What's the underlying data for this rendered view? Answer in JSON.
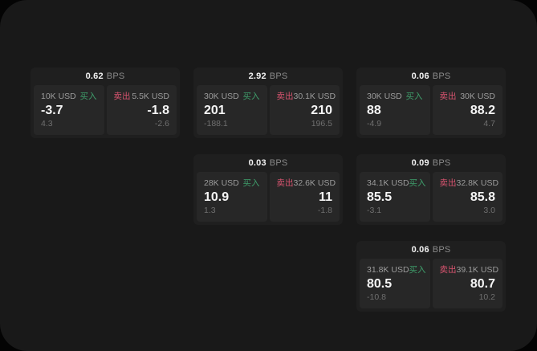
{
  "theme": {
    "frame_color": "#040404",
    "window_bg": "#191919",
    "card_bg": "#1f1f1f",
    "panel_bg": "#272727",
    "buy_color": "#3f9e6b",
    "sell_color": "#d8546f",
    "value_color": "#f5f5f5",
    "label_color": "#9c9c9c",
    "dim_color": "#6f6f6f"
  },
  "labels": {
    "bps": "BPS",
    "buy": "买入",
    "sell": "卖出"
  },
  "cards": [
    {
      "bps": "0.62",
      "buy": {
        "amount": "10K USD",
        "value": "-3.7",
        "delta": "4.3"
      },
      "sell": {
        "amount": "5.5K USD",
        "value": "-1.8",
        "delta": "-2.6"
      }
    },
    {
      "bps": "2.92",
      "buy": {
        "amount": "30K USD",
        "value": "201",
        "delta": "-188.1"
      },
      "sell": {
        "amount": "30.1K USD",
        "value": "210",
        "delta": "196.5"
      }
    },
    {
      "bps": "0.06",
      "buy": {
        "amount": "30K USD",
        "value": "88",
        "delta": "-4.9"
      },
      "sell": {
        "amount": "30K USD",
        "value": "88.2",
        "delta": "4.7"
      }
    },
    {
      "bps": "0.03",
      "buy": {
        "amount": "28K USD",
        "value": "10.9",
        "delta": "1.3"
      },
      "sell": {
        "amount": "32.6K USD",
        "value": "11",
        "delta": "-1.8"
      }
    },
    {
      "bps": "0.09",
      "buy": {
        "amount": "34.1K USD",
        "value": "85.5",
        "delta": "-3.1"
      },
      "sell": {
        "amount": "32.8K USD",
        "value": "85.8",
        "delta": "3.0"
      }
    },
    {
      "bps": "0.06",
      "buy": {
        "amount": "31.8K USD",
        "value": "80.5",
        "delta": "-10.8"
      },
      "sell": {
        "amount": "39.1K USD",
        "value": "80.7",
        "delta": "10.2"
      }
    }
  ]
}
